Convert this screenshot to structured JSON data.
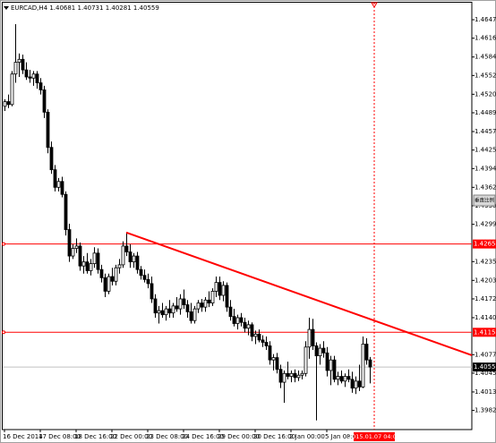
{
  "chart_data": {
    "type": "candlestick",
    "symbol": "EURCAD,H4",
    "ylim": [
      1.39494,
      1.46765
    ],
    "yticks": [
      1.46475,
      {
        "value": 1.4616,
        "label": "1.46160"
      },
      {
        "value": 1.4584,
        "label": "1.45840"
      },
      1.45525,
      1.45205,
      {
        "value": 1.4489,
        "label": "1.44890"
      },
      {
        "value": 1.4457,
        "label": "1.44570"
      },
      1.44255,
      {
        "value": 1.4394,
        "label": "1.43940"
      },
      {
        "value": 1.4362,
        "label": "1.43620"
      },
      1.43305,
      {
        "value": 1.4299,
        "label": "1.42990"
      },
      1.42355,
      1.42035,
      {
        "value": 1.4172,
        "label": "1.41720"
      },
      {
        "value": 1.414,
        "label": "1.41400"
      },
      {
        "value": 1.4077,
        "label": "1.40770"
      },
      1.40455,
      1.40135,
      {
        "value": 1.3982,
        "label": "1.39820"
      }
    ],
    "categories": [
      "16 Dec 2014",
      null,
      null,
      null,
      null,
      null,
      null,
      null,
      null,
      null,
      "17 Dec 08:00",
      null,
      null,
      null,
      null,
      null,
      null,
      null,
      null,
      null,
      "18 Dec 16:00",
      null,
      null,
      null,
      null,
      null,
      null,
      null,
      null,
      null,
      "22 Dec 00:00",
      null,
      null,
      null,
      null,
      null,
      null,
      null,
      null,
      null,
      "23 Dec 08:00",
      null,
      null,
      null,
      null,
      null,
      null,
      null,
      null,
      null,
      "24 Dec 16:00",
      null,
      null,
      null,
      null,
      null,
      null,
      null,
      null,
      null,
      "29 Dec 00:00",
      null,
      null,
      null,
      null,
      null,
      null,
      null,
      null,
      null,
      "30 Dec 16:00",
      null,
      null,
      null,
      null,
      null,
      null,
      null,
      null,
      null,
      "2 Jan 00:00",
      null,
      null,
      null,
      null,
      null,
      null,
      null,
      null,
      null,
      "5 Jan 08:00",
      null,
      null,
      null,
      null,
      null,
      null,
      null,
      null,
      null,
      null,
      null,
      null
    ],
    "candles": [
      [
        1.45,
        1.4512,
        1.4492,
        1.4508
      ],
      [
        1.4508,
        1.452,
        1.4497,
        1.4503
      ],
      [
        1.4503,
        1.456,
        1.45,
        1.4555
      ],
      [
        1.4555,
        1.464,
        1.454,
        1.4575
      ],
      [
        1.4575,
        1.459,
        1.455,
        1.458
      ],
      [
        1.458,
        1.4588,
        1.4555,
        1.4562
      ],
      [
        1.4562,
        1.4575,
        1.4545,
        1.455
      ],
      [
        1.455,
        1.4562,
        1.454,
        1.4548
      ],
      [
        1.4548,
        1.456,
        1.4535,
        1.4555
      ],
      [
        1.4555,
        1.456,
        1.453,
        1.454
      ],
      [
        1.454,
        1.4548,
        1.452,
        1.4528
      ],
      [
        1.4528,
        1.4535,
        1.448,
        1.449
      ],
      [
        1.449,
        1.4495,
        1.442,
        1.443
      ],
      [
        1.443,
        1.444,
        1.4385,
        1.4392
      ],
      [
        1.4392,
        1.44,
        1.4355,
        1.4362
      ],
      [
        1.4362,
        1.4378,
        1.4355,
        1.4372
      ],
      [
        1.4372,
        1.438,
        1.4345,
        1.435
      ],
      [
        1.435,
        1.4355,
        1.428,
        1.429
      ],
      [
        1.429,
        1.43,
        1.4235,
        1.4245
      ],
      [
        1.4245,
        1.4265,
        1.424,
        1.4258
      ],
      [
        1.4258,
        1.4275,
        1.425,
        1.4262
      ],
      [
        1.4262,
        1.4268,
        1.422,
        1.4228
      ],
      [
        1.4228,
        1.4245,
        1.4215,
        1.4235
      ],
      [
        1.4235,
        1.425,
        1.4215,
        1.422
      ],
      [
        1.422,
        1.424,
        1.4212,
        1.4232
      ],
      [
        1.4232,
        1.426,
        1.4225,
        1.425
      ],
      [
        1.425,
        1.4258,
        1.4215,
        1.4222
      ],
      [
        1.4222,
        1.423,
        1.42,
        1.4208
      ],
      [
        1.4208,
        1.4215,
        1.4175,
        1.4185
      ],
      [
        1.4185,
        1.4215,
        1.418,
        1.421
      ],
      [
        1.421,
        1.4225,
        1.4195,
        1.4202
      ],
      [
        1.4202,
        1.423,
        1.4195,
        1.4225
      ],
      [
        1.4225,
        1.424,
        1.4215,
        1.423
      ],
      [
        1.423,
        1.427,
        1.4225,
        1.4262
      ],
      [
        1.4262,
        1.4285,
        1.4245,
        1.4252
      ],
      [
        1.4252,
        1.4265,
        1.4225,
        1.4235
      ],
      [
        1.4235,
        1.425,
        1.4225,
        1.4245
      ],
      [
        1.4245,
        1.4252,
        1.4215,
        1.4222
      ],
      [
        1.4222,
        1.4228,
        1.4205,
        1.4212
      ],
      [
        1.4212,
        1.4222,
        1.42,
        1.4205
      ],
      [
        1.4205,
        1.4215,
        1.419,
        1.4198
      ],
      [
        1.4198,
        1.421,
        1.4165,
        1.4172
      ],
      [
        1.4172,
        1.418,
        1.414,
        1.4148
      ],
      [
        1.4148,
        1.416,
        1.413,
        1.4152
      ],
      [
        1.4152,
        1.4165,
        1.414,
        1.4145
      ],
      [
        1.4145,
        1.416,
        1.4135,
        1.4155
      ],
      [
        1.4155,
        1.417,
        1.414,
        1.4148
      ],
      [
        1.4148,
        1.4165,
        1.414,
        1.416
      ],
      [
        1.416,
        1.4175,
        1.415,
        1.4155
      ],
      [
        1.4155,
        1.418,
        1.4145,
        1.4172
      ],
      [
        1.4172,
        1.4188,
        1.4155,
        1.4162
      ],
      [
        1.4162,
        1.417,
        1.414,
        1.415
      ],
      [
        1.415,
        1.4165,
        1.413,
        1.4135
      ],
      [
        1.4135,
        1.416,
        1.413,
        1.4155
      ],
      [
        1.4155,
        1.417,
        1.4148,
        1.4165
      ],
      [
        1.4165,
        1.4172,
        1.415,
        1.4158
      ],
      [
        1.4158,
        1.4175,
        1.415,
        1.417
      ],
      [
        1.417,
        1.4185,
        1.4158,
        1.4165
      ],
      [
        1.4165,
        1.419,
        1.416,
        1.4185
      ],
      [
        1.4185,
        1.421,
        1.4175,
        1.42
      ],
      [
        1.42,
        1.421,
        1.417,
        1.4178
      ],
      [
        1.4178,
        1.4202,
        1.4168,
        1.4195
      ],
      [
        1.4195,
        1.42,
        1.415,
        1.4158
      ],
      [
        1.4158,
        1.417,
        1.4135,
        1.4142
      ],
      [
        1.4142,
        1.4155,
        1.4125,
        1.413
      ],
      [
        1.413,
        1.4145,
        1.412,
        1.414
      ],
      [
        1.414,
        1.4148,
        1.4125,
        1.4132
      ],
      [
        1.4132,
        1.414,
        1.4115,
        1.4122
      ],
      [
        1.4122,
        1.4135,
        1.411,
        1.4128
      ],
      [
        1.4128,
        1.4132,
        1.41,
        1.4108
      ],
      [
        1.4108,
        1.4118,
        1.4095,
        1.4112
      ],
      [
        1.4112,
        1.412,
        1.4098,
        1.4102
      ],
      [
        1.4102,
        1.411,
        1.409,
        1.4098
      ],
      [
        1.4098,
        1.4108,
        1.4085,
        1.4092
      ],
      [
        1.4092,
        1.41,
        1.406,
        1.4068
      ],
      [
        1.4068,
        1.4078,
        1.405,
        1.4072
      ],
      [
        1.4072,
        1.408,
        1.4045,
        1.4052
      ],
      [
        1.4052,
        1.406,
        1.402,
        1.403
      ],
      [
        1.403,
        1.405,
        1.3995,
        1.4045
      ],
      [
        1.4045,
        1.4065,
        1.4035,
        1.404
      ],
      [
        1.404,
        1.405,
        1.403,
        1.4045
      ],
      [
        1.4045,
        1.4052,
        1.403,
        1.4038
      ],
      [
        1.4038,
        1.405,
        1.4032,
        1.4042
      ],
      [
        1.4042,
        1.405,
        1.4035,
        1.4045
      ],
      [
        1.4045,
        1.41,
        1.404,
        1.409
      ],
      [
        1.409,
        1.414,
        1.407,
        1.412
      ],
      [
        1.412,
        1.4138,
        1.4085,
        1.4092
      ],
      [
        1.4092,
        1.4098,
        1.3965,
        1.4075
      ],
      [
        1.4075,
        1.4095,
        1.406,
        1.4088
      ],
      [
        1.4088,
        1.41,
        1.4072,
        1.408
      ],
      [
        1.408,
        1.409,
        1.404,
        1.405
      ],
      [
        1.405,
        1.4075,
        1.4025,
        1.4068
      ],
      [
        1.4068,
        1.4075,
        1.403,
        1.4035
      ],
      [
        1.4035,
        1.4048,
        1.4025,
        1.404
      ],
      [
        1.404,
        1.405,
        1.4028,
        1.4032
      ],
      [
        1.4032,
        1.4045,
        1.4022,
        1.404
      ],
      [
        1.404,
        1.4052,
        1.403,
        1.4035
      ],
      [
        1.4035,
        1.4048,
        1.4012,
        1.402
      ],
      [
        1.402,
        1.404,
        1.401,
        1.4032
      ],
      [
        1.4032,
        1.406,
        1.4015,
        1.4022
      ],
      [
        1.4022,
        1.4108,
        1.402,
        1.4095
      ],
      [
        1.4095,
        1.4105,
        1.406,
        1.4068
      ],
      [
        1.40681,
        1.40731,
        1.40281,
        1.40559
      ]
    ],
    "levels": [
      1.42655,
      1.41151
    ],
    "trendline": {
      "x": [
        34,
        130.5
      ],
      "y": [
        1.4285,
        1.4076
      ]
    },
    "cursor": {
      "x": 103.25,
      "label": "2015.01.07 04:00"
    },
    "button": "垂直比例",
    "colors": {
      "level": "#ff0000",
      "trend": "#ff0000",
      "bid": "#c0c0c0",
      "bull": "#ffffff",
      "bear": "#000000"
    }
  }
}
